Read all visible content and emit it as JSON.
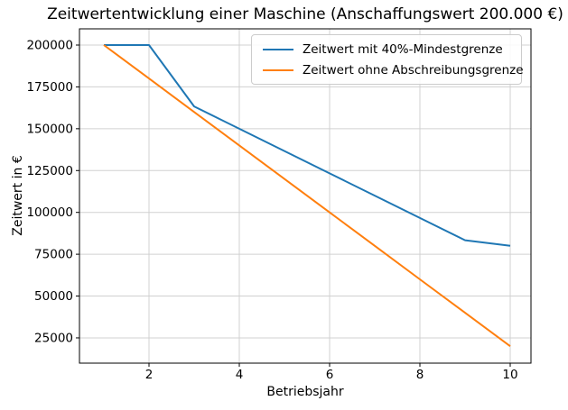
{
  "chart_data": {
    "type": "line",
    "title": "Zeitwertentwicklung einer Maschine (Anschaffungswert 200.000 €)",
    "xlabel": "Betriebsjahr",
    "ylabel": "Zeitwert in €",
    "x": [
      1,
      2,
      3,
      4,
      5,
      6,
      7,
      8,
      9,
      10
    ],
    "series": [
      {
        "name": "Zeitwert mit 40%-Mindestgrenze",
        "color": "#1f77b4",
        "values": [
          200000,
          200000,
          163333,
          150000,
          136667,
          123333,
          110000,
          96667,
          83333,
          80000
        ]
      },
      {
        "name": "Zeitwert ohne Abschreibungsgrenze",
        "color": "#ff7f0e",
        "values": [
          200000,
          180000,
          160000,
          140000,
          120000,
          100000,
          80000,
          60000,
          40000,
          20000
        ]
      }
    ],
    "xticks": [
      2,
      4,
      6,
      8,
      10
    ],
    "yticks": [
      25000,
      50000,
      75000,
      100000,
      125000,
      150000,
      175000,
      200000
    ],
    "xlim": [
      0.46,
      10.46
    ],
    "ylim": [
      9900,
      209700
    ],
    "grid": true,
    "legend_position": "upper right",
    "background_color": "#ffffff",
    "grid_color": "#d0d0d0",
    "spine_color": "#000000"
  }
}
